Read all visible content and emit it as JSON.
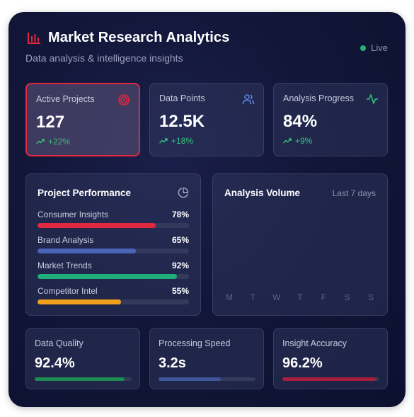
{
  "header": {
    "title": "Market Research Analytics",
    "subtitle": "Data analysis & intelligence insights",
    "status": "Live",
    "icon": "bar-chart-icon"
  },
  "stats": [
    {
      "label": "Active Projects",
      "value": "127",
      "change": "+22%",
      "icon": "target-icon",
      "active": true
    },
    {
      "label": "Data Points",
      "value": "12.5K",
      "change": "+18%",
      "icon": "users-icon",
      "active": false
    },
    {
      "label": "Analysis Progress",
      "value": "84%",
      "change": "+9%",
      "icon": "activity-icon",
      "active": false
    }
  ],
  "performance": {
    "title": "Project Performance",
    "icon": "pie-chart-icon",
    "items": [
      {
        "label": "Consumer Insights",
        "value": "78%",
        "percent": 78,
        "color": "#e0283f"
      },
      {
        "label": "Brand Analysis",
        "value": "65%",
        "percent": 65,
        "color": "#4a63b5"
      },
      {
        "label": "Market Trends",
        "value": "92%",
        "percent": 92,
        "color": "#1fae7a"
      },
      {
        "label": "Competitor Intel",
        "value": "55%",
        "percent": 55,
        "color": "#f0a01c"
      }
    ]
  },
  "volume": {
    "title": "Analysis Volume",
    "range": "Last 7 days",
    "days": [
      "M",
      "T",
      "W",
      "T",
      "F",
      "S",
      "S"
    ]
  },
  "metrics": [
    {
      "label": "Data Quality",
      "value": "92.4%",
      "percent": 92.4,
      "color": "#1e8c52"
    },
    {
      "label": "Processing Speed",
      "value": "3.2s",
      "percent": 64,
      "color": "#3f5596"
    },
    {
      "label": "Insight Accuracy",
      "value": "96.2%",
      "percent": 96.2,
      "color": "#a81f3c"
    }
  ],
  "colors": {
    "accent_red": "#e0283f",
    "positive_green": "#33c27a",
    "live_green": "#22b573"
  }
}
